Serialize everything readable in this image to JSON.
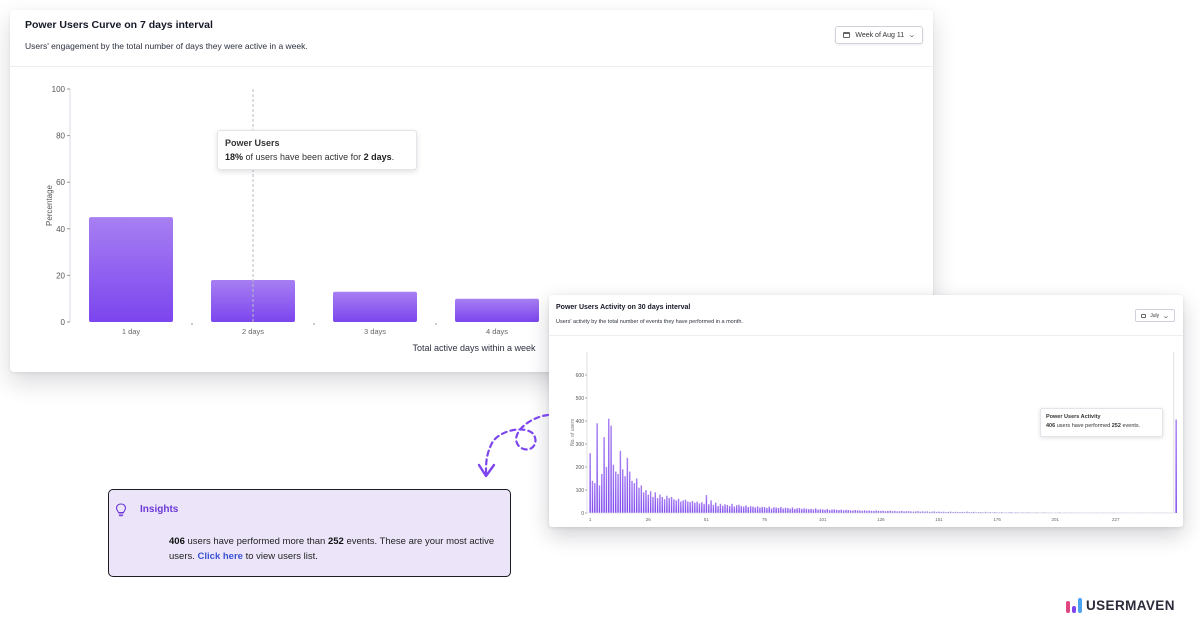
{
  "card1": {
    "title": "Power Users Curve on 7 days interval",
    "subtitle": "Users' engagement by the total number of days they were active in a week.",
    "date_selector": "Week of Aug 11",
    "tooltip": {
      "title": "Power Users",
      "percent": "18%",
      "mid_text": " of users have been active for ",
      "days": "2 days",
      "end": "."
    }
  },
  "card2": {
    "title": "Power Users Activity on 30 days interval",
    "subtitle": "Users' activity by the total number of events they have performed in a month.",
    "date_selector": "July",
    "tooltip": {
      "title": "Power Users Activity",
      "users": "406",
      "mid_text": " users have performed ",
      "events": "252",
      "end": " events."
    }
  },
  "insights": {
    "title": "Insights",
    "users": "406",
    "t1": " users have performed more than ",
    "events": "252",
    "t2": " events. These are your most active users. ",
    "link": "Click here",
    "t3": " to view users list."
  },
  "logo": {
    "text": "USERMAVEN"
  },
  "colors": {
    "bar_top": "#a77ff2",
    "bar_bottom": "#7c45ee",
    "accent": "#6d38d8",
    "highlight_bar": "#e0467f",
    "link": "#3a52d4"
  },
  "chart_data": [
    {
      "type": "bar",
      "categories": [
        "1 day",
        "2 days",
        "3 days",
        "4 days"
      ],
      "values": [
        45,
        18,
        13,
        10
      ],
      "xlabel": "Total active days within a week",
      "ylabel": "Percentage",
      "ylim": [
        0,
        100
      ],
      "yticks": [
        0,
        20,
        40,
        60,
        80,
        100
      ],
      "grid": false
    },
    {
      "type": "bar",
      "xlabel": "",
      "ylabel": "No. of users",
      "ylim": [
        0,
        700
      ],
      "yticks": [
        0,
        100,
        200,
        300,
        400,
        500,
        600
      ],
      "ytick_labels": [
        "0",
        "100",
        "200",
        "300",
        "400",
        "500",
        "600"
      ],
      "xticks": [
        1,
        26,
        51,
        76,
        101,
        126,
        151,
        176,
        201,
        227
      ],
      "x_start": 1,
      "x_end": 252,
      "highlight_x": 252,
      "highlight_value": 406,
      "values": [
        260,
        140,
        130,
        390,
        120,
        170,
        330,
        200,
        410,
        380,
        210,
        180,
        170,
        270,
        190,
        160,
        240,
        180,
        140,
        130,
        150,
        110,
        120,
        90,
        100,
        80,
        95,
        70,
        90,
        65,
        80,
        70,
        60,
        75,
        65,
        70,
        60,
        55,
        62,
        50,
        55,
        58,
        50,
        48,
        52,
        45,
        50,
        42,
        47,
        40,
        78,
        38,
        55,
        35,
        45,
        30,
        40,
        32,
        38,
        35,
        30,
        40,
        28,
        34,
        36,
        30,
        28,
        33,
        26,
        30,
        28,
        25,
        29,
        24,
        27,
        26,
        22,
        28,
        20,
        25,
        24,
        22,
        26,
        20,
        23,
        22,
        19,
        24,
        18,
        21,
        22,
        18,
        20,
        19,
        17,
        18,
        16,
        20,
        15,
        17,
        16,
        14,
        18,
        13,
        15,
        16,
        14,
        13,
        15,
        12,
        14,
        13,
        12,
        11,
        13,
        12,
        11,
        10,
        12,
        10,
        11,
        10,
        9,
        11,
        10,
        9,
        10,
        8,
        9,
        10,
        8,
        9,
        7,
        8,
        9,
        7,
        8,
        8,
        7,
        6,
        7,
        8,
        6,
        7,
        6,
        7,
        5,
        6,
        7,
        5,
        6,
        5,
        6,
        4,
        5,
        6,
        4,
        5,
        5,
        4,
        5,
        4,
        6,
        4,
        4,
        5,
        3,
        4,
        4,
        3,
        5,
        3,
        4,
        3,
        4,
        3,
        3,
        4,
        2,
        3,
        3,
        4,
        2,
        3,
        3,
        2,
        3,
        2,
        3,
        3,
        2,
        2,
        3,
        2,
        2,
        3,
        2,
        2,
        2,
        1,
        2,
        2,
        3,
        1,
        2,
        2,
        1,
        2,
        1,
        2,
        2,
        1,
        1,
        2,
        1,
        2,
        1,
        1,
        2,
        1,
        1,
        2,
        1,
        1,
        1,
        2,
        1,
        1,
        1,
        1,
        2,
        1,
        1,
        1,
        1,
        1,
        1,
        1,
        1,
        1,
        1,
        1,
        1,
        1,
        1,
        1,
        1,
        1,
        1,
        1,
        1,
        0,
        406
      ]
    }
  ]
}
